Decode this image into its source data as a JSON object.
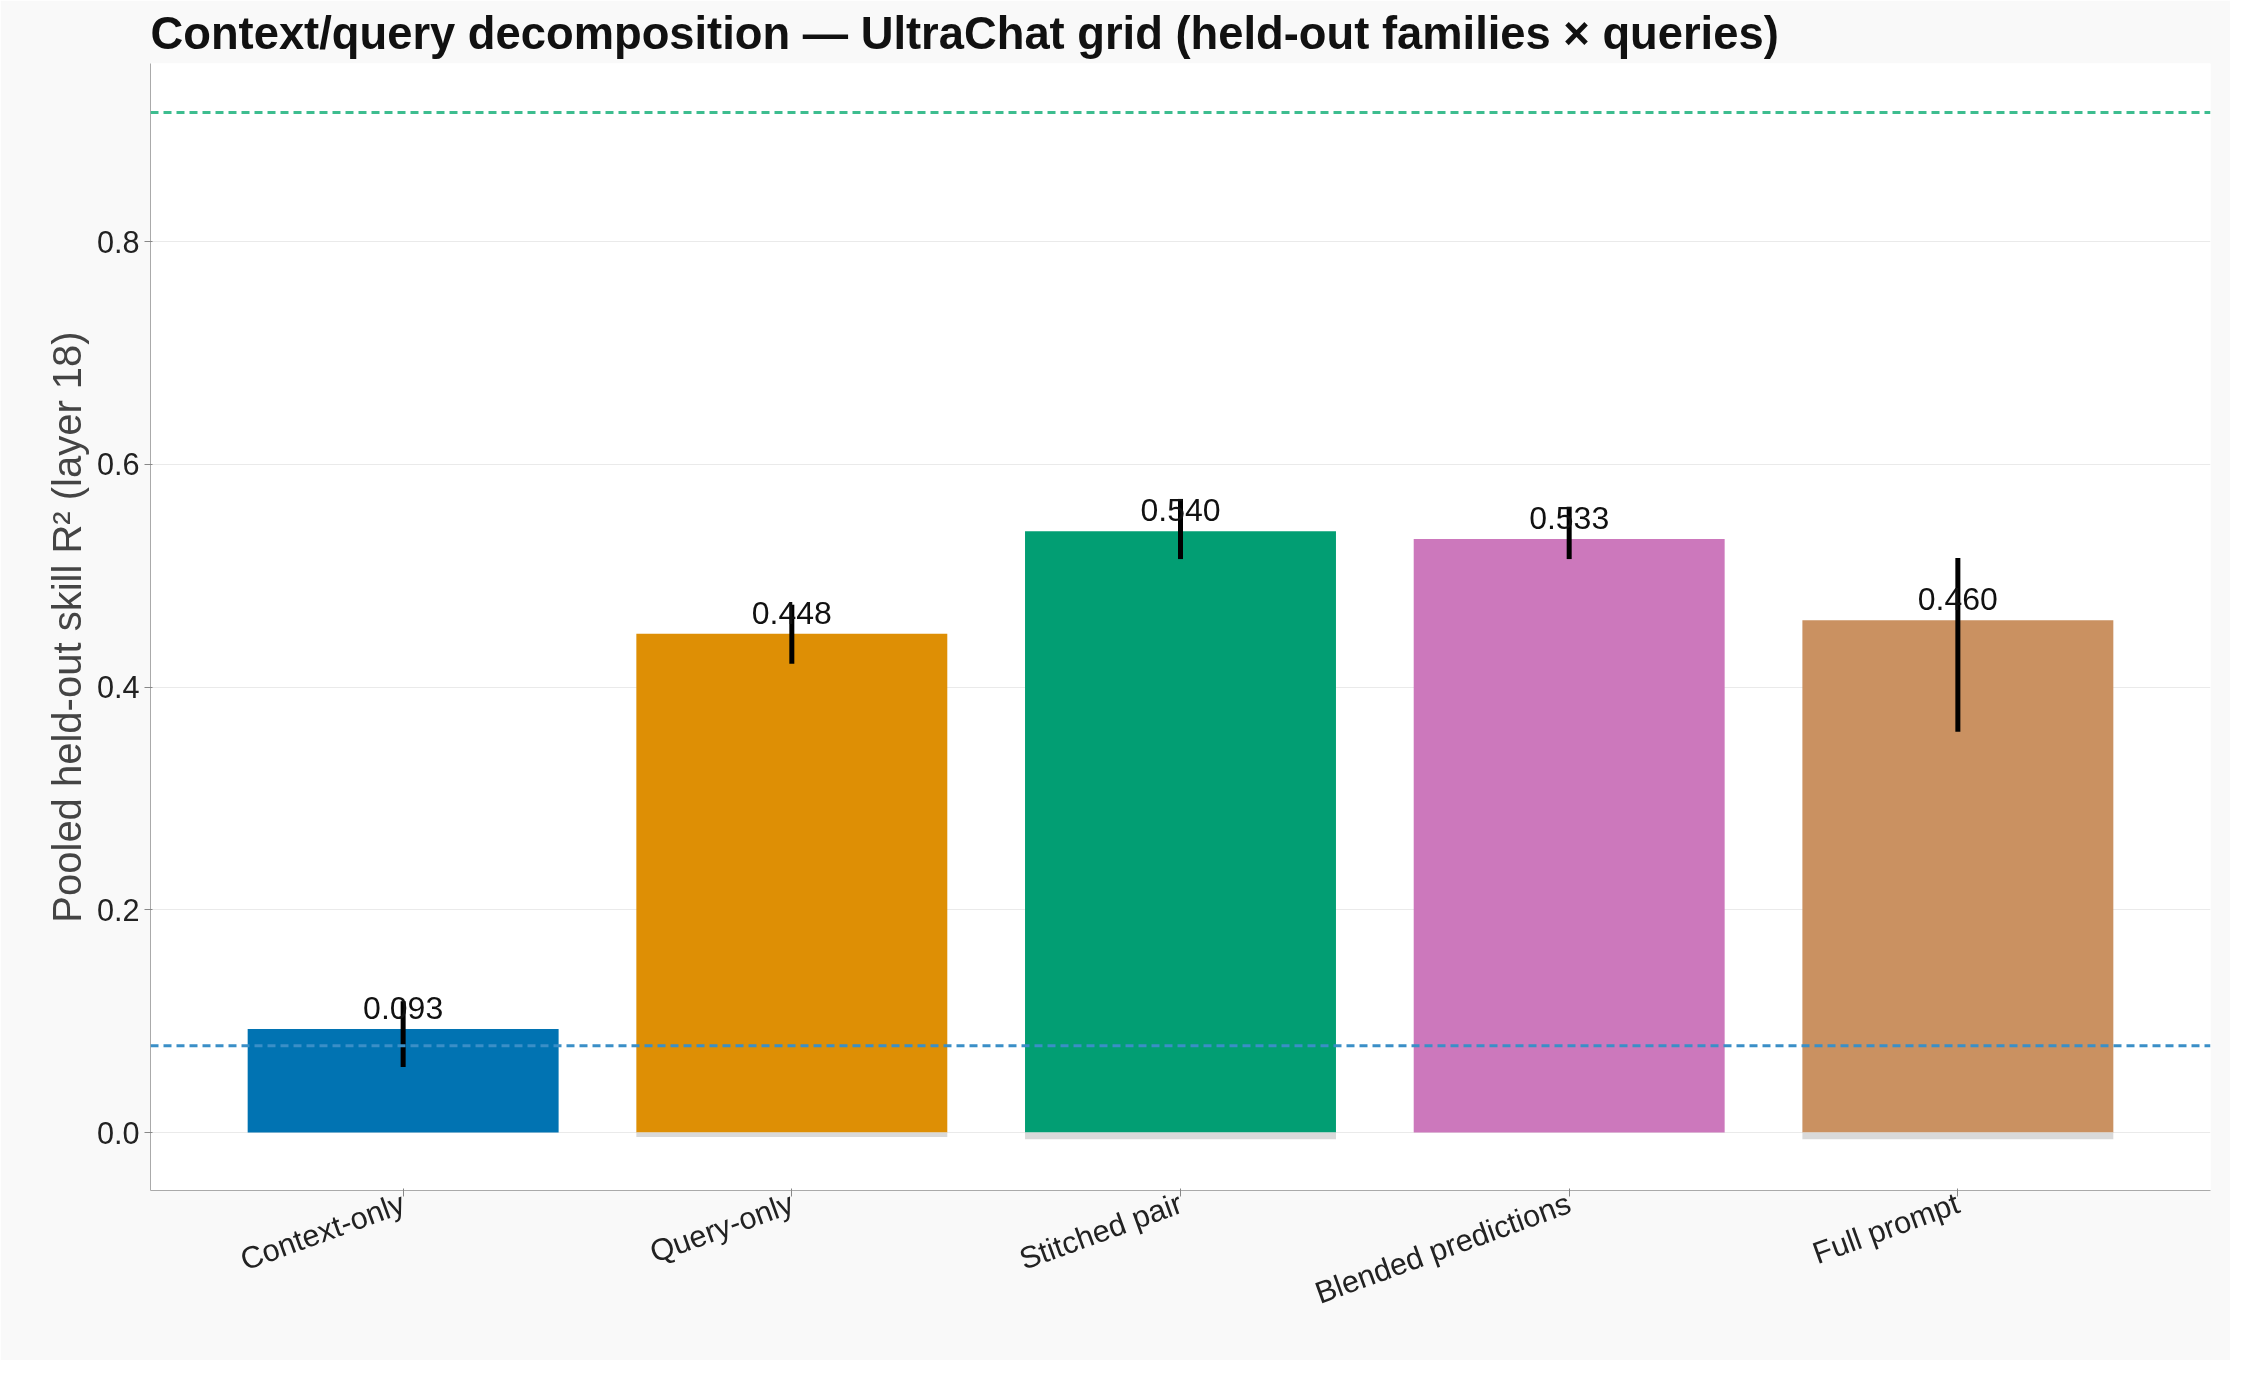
{
  "chart_data": {
    "type": "bar",
    "title": "Context/query decomposition — UltraChat grid (held-out families × queries)",
    "ylabel": "Pooled held-out skill R² (layer 18)",
    "categories": [
      "Context-only",
      "Query-only",
      "Stitched pair",
      "Blended predictions",
      "Full prompt"
    ],
    "series": [
      {
        "colors": [
          "#0173b2",
          "#de8f05",
          "#029e73",
          "#cc78bc",
          "#ca9161"
        ],
        "values": [
          0.093,
          0.448,
          0.54,
          0.533,
          0.46
        ],
        "errors": [
          [
            0.059,
            0.118
          ],
          [
            0.421,
            0.474
          ],
          [
            0.515,
            0.569
          ],
          [
            0.515,
            0.562
          ],
          [
            0.36,
            0.516
          ]
        ],
        "value_labels": [
          "0.093",
          "0.448",
          "0.540",
          "0.533",
          "0.460"
        ]
      },
      {
        "color": "#d9d9d9",
        "values": [
          null,
          -0.004,
          -0.006,
          null,
          -0.006
        ]
      }
    ],
    "ylim": [
      -0.052,
      0.96
    ],
    "yticks": [
      {
        "value": 0,
        "label": "0.0"
      },
      {
        "value": 0.2,
        "label": "0.2"
      },
      {
        "value": 0.4,
        "label": "0.4"
      },
      {
        "value": 0.6,
        "label": "0.6"
      },
      {
        "value": 0.8,
        "label": "0.8"
      }
    ],
    "grid": "y",
    "stacked": true,
    "ref_lines": [
      {
        "axis": "y",
        "value": 0.916,
        "color": "#3dbd8f",
        "line_style": "dashed"
      },
      {
        "axis": "y",
        "value": 0.078,
        "color": "#3a8fc7",
        "line_style": "dashed"
      }
    ]
  }
}
